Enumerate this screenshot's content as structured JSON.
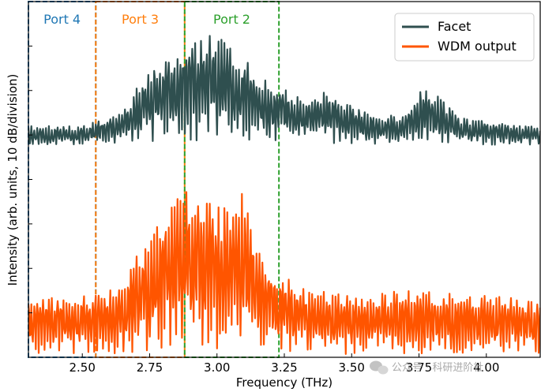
{
  "chart_data": {
    "type": "line",
    "title": "",
    "xlabel": "Frequency (THz)",
    "ylabel": "Intensity (arb. units, 10 dB/division)",
    "xlim": [
      2.3,
      4.2
    ],
    "ylim": [
      0,
      8
    ],
    "x_ticks": [
      "2.50",
      "2.75",
      "3.00",
      "3.25",
      "3.50",
      "3.75",
      "4.00"
    ],
    "x_tick_values": [
      2.5,
      2.75,
      3.0,
      3.25,
      3.5,
      3.75,
      4.0
    ],
    "y_tick_values": [
      0,
      1,
      2,
      3,
      4,
      5,
      6,
      7,
      8
    ],
    "grid": false,
    "legend_position": "top-right",
    "series": [
      {
        "name": "Facet",
        "color": "#2f4f4f",
        "baseline": 4.75,
        "envelope": [
          [
            2.3,
            5.2
          ],
          [
            2.5,
            5.2
          ],
          [
            2.55,
            5.3
          ],
          [
            2.65,
            5.5
          ],
          [
            2.75,
            6.6
          ],
          [
            2.85,
            6.9
          ],
          [
            2.9,
            7.0
          ],
          [
            2.95,
            7.2
          ],
          [
            3.0,
            7.3
          ],
          [
            3.05,
            7.2
          ],
          [
            3.1,
            6.7
          ],
          [
            3.2,
            6.2
          ],
          [
            3.3,
            5.9
          ],
          [
            3.4,
            6.0
          ],
          [
            3.5,
            5.7
          ],
          [
            3.6,
            5.4
          ],
          [
            3.7,
            5.5
          ],
          [
            3.75,
            6.0
          ],
          [
            3.8,
            6.0
          ],
          [
            3.9,
            5.4
          ],
          [
            4.0,
            5.3
          ],
          [
            4.2,
            5.2
          ]
        ]
      },
      {
        "name": "WDM output",
        "color": "#ff5500",
        "baseline": 0.0,
        "envelope": [
          [
            2.3,
            1.3
          ],
          [
            2.55,
            1.4
          ],
          [
            2.65,
            1.6
          ],
          [
            2.7,
            2.4
          ],
          [
            2.75,
            2.7
          ],
          [
            2.8,
            3.3
          ],
          [
            2.85,
            3.6
          ],
          [
            2.88,
            3.8
          ],
          [
            2.92,
            3.7
          ],
          [
            2.95,
            3.8
          ],
          [
            3.0,
            3.4
          ],
          [
            3.05,
            3.4
          ],
          [
            3.1,
            3.9
          ],
          [
            3.15,
            2.6
          ],
          [
            3.2,
            2.1
          ],
          [
            3.3,
            1.6
          ],
          [
            3.5,
            1.4
          ],
          [
            3.7,
            1.5
          ],
          [
            4.0,
            1.4
          ],
          [
            4.2,
            1.3
          ]
        ]
      }
    ],
    "regions": [
      {
        "label": "Port 4",
        "x_range": [
          2.3,
          2.55
        ],
        "color": "#1f77b4"
      },
      {
        "label": "Port 3",
        "x_range": [
          2.55,
          2.88
        ],
        "color": "#ff7f0e"
      },
      {
        "label": "Port 2",
        "x_range": [
          2.88,
          3.23
        ],
        "color": "#2ca02c"
      }
    ]
  },
  "watermark": {
    "text": "公众号 · 科研进阶社",
    "icon": "wechat-icon"
  }
}
